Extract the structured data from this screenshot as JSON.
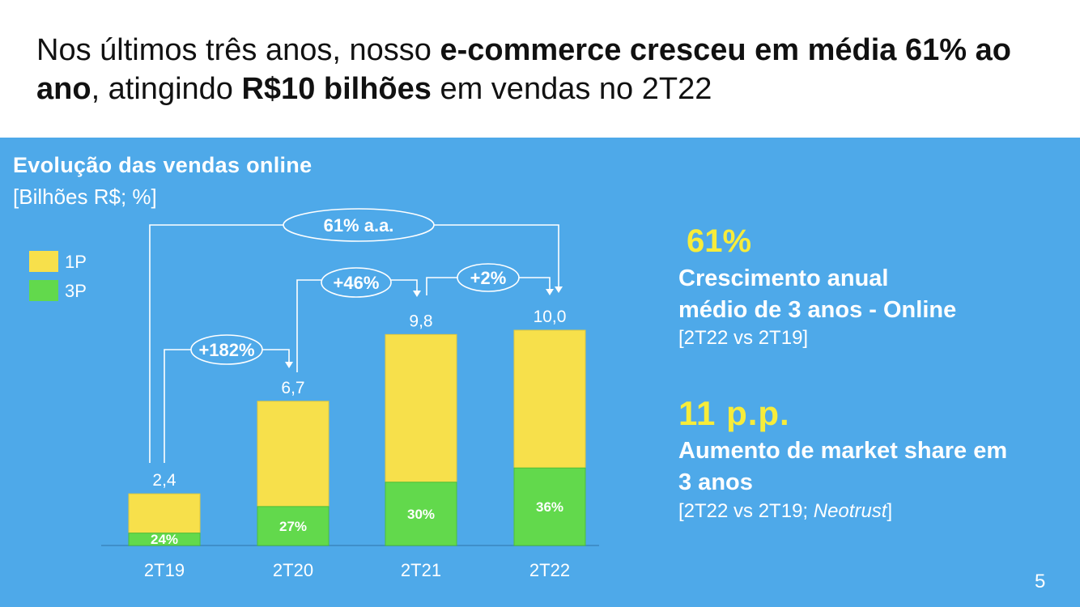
{
  "headline": {
    "part1": "Nos últimos três anos, nosso ",
    "bold1": "e-commerce cresceu em média 61% ao ano",
    "part2": ", atingindo ",
    "bold2": "R$10 bilhões",
    "part3": " em vendas no 2T22"
  },
  "chart_data": {
    "type": "bar",
    "stacked": true,
    "title": "Evolução das vendas online",
    "subtitle": "[Bilhões R$; %]",
    "categories": [
      "2T19",
      "2T20",
      "2T21",
      "2T22"
    ],
    "totals": [
      2.4,
      6.7,
      9.8,
      10.0
    ],
    "total_labels": [
      "2,4",
      "6,7",
      "9,8",
      "10,0"
    ],
    "series": [
      {
        "name": "1P",
        "color": "#f7e04b",
        "share_pct": [
          76,
          73,
          70,
          64
        ]
      },
      {
        "name": "3P",
        "color": "#62d94c",
        "share_pct": [
          24,
          27,
          30,
          36
        ]
      }
    ],
    "share_labels_3p": [
      "24%",
      "27%",
      "30%",
      "36%"
    ],
    "legend": {
      "position": "top-left",
      "items": [
        "1P",
        "3P"
      ]
    },
    "growth_annotations": [
      {
        "from": "2T19",
        "to": "2T22",
        "label": "61% a.a."
      },
      {
        "from": "2T19",
        "to": "2T20",
        "label": "+182%"
      },
      {
        "from": "2T20",
        "to": "2T21",
        "label": "+46%"
      },
      {
        "from": "2T21",
        "to": "2T22",
        "label": "+2%"
      }
    ],
    "ylim": [
      0,
      11
    ]
  },
  "kpis": [
    {
      "value": "61%",
      "label_line1": "Crescimento anual",
      "label_line2": "médio de 3 anos - Online",
      "note": "[2T22 vs 2T19]"
    },
    {
      "value": "11 p.p.",
      "label_line1": "Aumento de market share em",
      "label_line2": "3 anos",
      "note_plain": "[2T22 vs 2T19; ",
      "note_italic": "Neotrust",
      "note_close": "]"
    }
  ],
  "page_number": "5",
  "colors": {
    "panel": "#4ea9e9",
    "kpi_value": "#f7ec3a",
    "bar_1p": "#f7e04b",
    "bar_3p": "#62d94c"
  }
}
